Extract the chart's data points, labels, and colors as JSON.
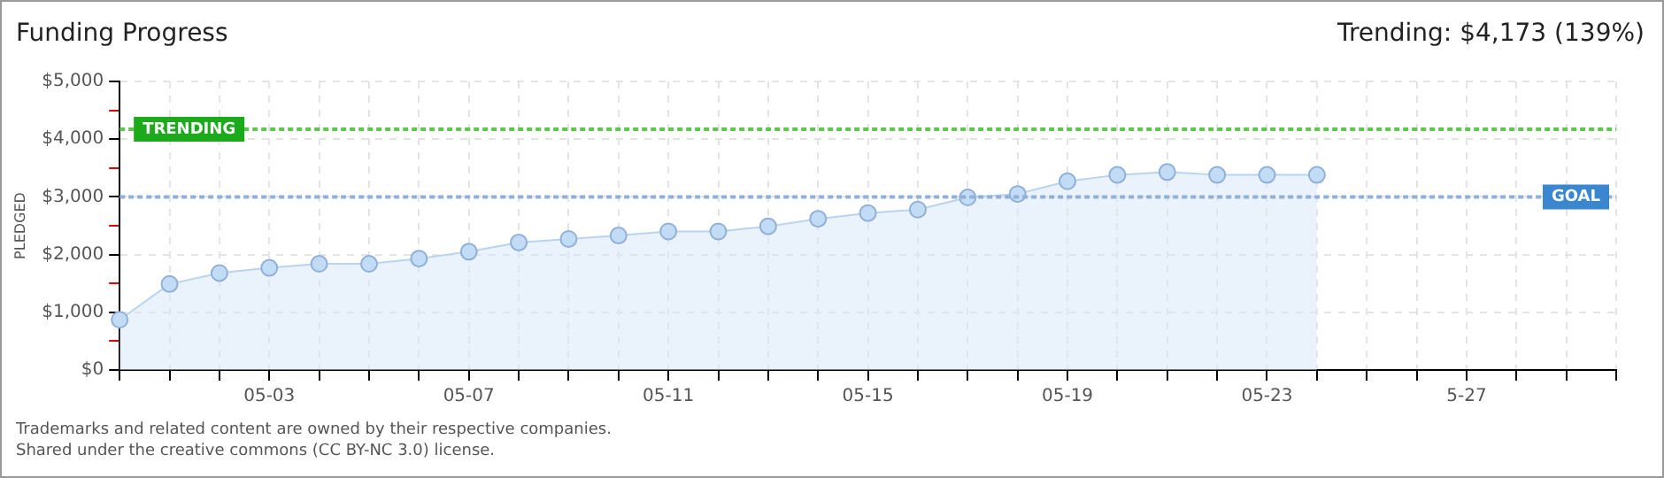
{
  "chart_data": {
    "type": "area",
    "title": "Funding Progress",
    "subtitle": "Trending: $4,173 (139%)",
    "ylabel": "PLEDGED",
    "categories": [
      null,
      null,
      null,
      "05-03",
      null,
      null,
      null,
      "05-07",
      null,
      null,
      null,
      "05-11",
      null,
      null,
      null,
      "05-15",
      null,
      null,
      null,
      "05-19",
      null,
      null,
      null,
      "05-23",
      null,
      null,
      null,
      "5-27",
      null,
      null,
      null
    ],
    "series": [
      {
        "color": "#b9d4f0",
        "values": [
          870,
          1490,
          1680,
          1770,
          1840,
          1840,
          1930,
          2050,
          2210,
          2270,
          2330,
          2400,
          2400,
          2490,
          2620,
          2720,
          2780,
          2990,
          3050,
          3270,
          3380,
          3430,
          3380,
          3380,
          3380,
          null,
          null,
          null,
          null,
          null,
          null
        ]
      }
    ],
    "ylim": [
      0,
      5000
    ],
    "yticks": [
      {
        "value": 0,
        "label": "$0"
      },
      {
        "value": 500,
        "label": null
      },
      {
        "value": 1000,
        "label": "$1,000"
      },
      {
        "value": 1500,
        "label": null
      },
      {
        "value": 2000,
        "label": "$2,000"
      },
      {
        "value": 2500,
        "label": null
      },
      {
        "value": 3000,
        "label": "$3,000"
      },
      {
        "value": 3500,
        "label": null
      },
      {
        "value": 4000,
        "label": "$4,000"
      },
      {
        "value": 4500,
        "label": null
      },
      {
        "value": 5000,
        "label": "$5,000"
      }
    ],
    "ref_lines": [
      {
        "axis": "y",
        "value": 4173,
        "label": "TRENDING",
        "color": "#5cc84a",
        "line_style": "dotted"
      },
      {
        "axis": "y",
        "value": 3000,
        "label": "GOAL",
        "color": "#8fb0d8",
        "line_style": "dotted"
      }
    ],
    "grid": true,
    "legend": false,
    "marker": "circle",
    "annotations": [
      "Trademarks and related content are owned by their respective companies.",
      "Shared under the creative commons (CC BY-NC 3.0) license."
    ]
  }
}
